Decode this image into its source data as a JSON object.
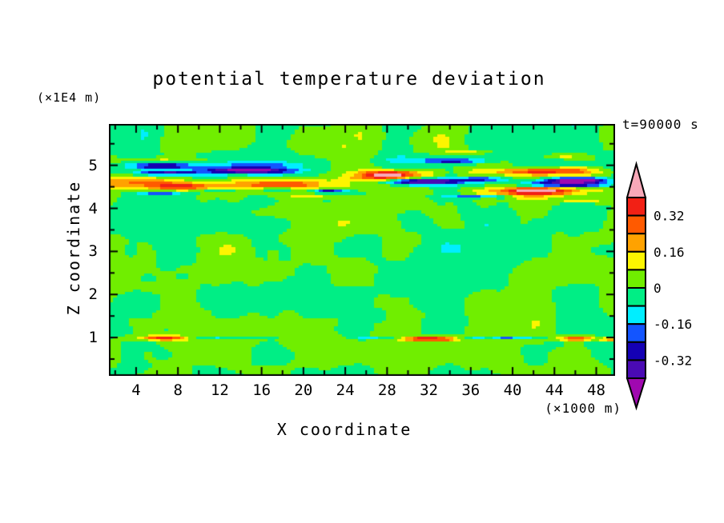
{
  "title": "potential temperature deviation",
  "annotations": {
    "y_units_label": "(×1E4 m)",
    "x_units_label": "(×1000 m)",
    "time_label": "t=90000 s"
  },
  "axes": {
    "x": {
      "label": "X coordinate",
      "major_ticks": [
        4,
        8,
        12,
        16,
        20,
        24,
        28,
        32,
        36,
        40,
        44,
        48
      ],
      "minor_step": 2
    },
    "z": {
      "label": "Z coordinate",
      "major_ticks": [
        1,
        2,
        3,
        4,
        5
      ],
      "minor_step": 0.5
    }
  },
  "colorbar": {
    "labels": [
      "0.32",
      "0.16",
      "0",
      "-0.16",
      "-0.32"
    ],
    "label_boundary_indices": [
      1,
      3,
      5,
      7,
      9
    ]
  },
  "chart_data": {
    "type": "heatmap",
    "title": "potential temperature deviation",
    "xlabel": "X coordinate (×1000 m)",
    "ylabel": "Z coordinate (×1E4 m)",
    "time": "t=90000 s",
    "x_range": [
      1.4,
      49.8
    ],
    "z_range": [
      0.11,
      5.96
    ],
    "contour_interval": 0.08,
    "levels": [
      -0.4,
      -0.32,
      -0.24,
      -0.16,
      -0.08,
      0,
      0.08,
      0.16,
      0.24,
      0.32,
      0.4
    ],
    "band_colors": [
      "#a008b0",
      "#4a0ab4",
      "#1400b4",
      "#1355ff",
      "#00eeff",
      "#00ee85",
      "#70ee00",
      "#fdf500",
      "#ffa200",
      "#ff5a00",
      "#f22015",
      "#f8a8b8"
    ],
    "grid": {
      "nx": 128,
      "nz": 96
    },
    "background_noise": {
      "amp1": 0.075,
      "sx1": 4.2,
      "sz1": 0.62,
      "seed1": 7,
      "amp2": 0.03,
      "sx2": 1.7,
      "sz2": 0.3,
      "seed2": 13
    },
    "features": [
      {
        "cx": 4.5,
        "cz": 4.6,
        "lx": 4.0,
        "lz": 0.14,
        "a": 0.27
      },
      {
        "cx": 8.5,
        "cz": 4.5,
        "lx": 3.2,
        "lz": 0.09,
        "a": 0.31
      },
      {
        "cx": 17.5,
        "cz": 4.55,
        "lx": 5.0,
        "lz": 0.14,
        "a": 0.33
      },
      {
        "cx": 27.5,
        "cz": 4.68,
        "lx": 3.2,
        "lz": 0.1,
        "a": 0.3
      },
      {
        "cx": 28.5,
        "cz": 4.8,
        "lx": 3.0,
        "lz": 0.08,
        "a": 0.38
      },
      {
        "cx": 43.0,
        "cz": 4.85,
        "lx": 4.6,
        "lz": 0.09,
        "a": 0.38
      },
      {
        "cx": 42.5,
        "cz": 4.4,
        "lx": 4.6,
        "lz": 0.1,
        "a": 0.42
      },
      {
        "cx": 6.0,
        "cz": 5.12,
        "lx": 5.0,
        "lz": 0.06,
        "a": 0.13
      },
      {
        "cx": 36.0,
        "cz": 5.3,
        "lx": 1.8,
        "lz": 0.04,
        "a": 0.13
      },
      {
        "cx": 44.5,
        "cz": 5.22,
        "lx": 1.8,
        "lz": 0.04,
        "a": 0.13
      },
      {
        "cx": 21.0,
        "cz": 4.3,
        "lx": 2.4,
        "lz": 0.06,
        "a": 0.15
      },
      {
        "cx": 46.5,
        "cz": 4.18,
        "lx": 2.6,
        "lz": 0.05,
        "a": 0.16
      },
      {
        "cx": 6.5,
        "cz": 4.97,
        "lx": 2.8,
        "lz": 0.06,
        "a": -0.28
      },
      {
        "cx": 14.7,
        "cz": 4.88,
        "lx": 4.0,
        "lz": 0.08,
        "a": -0.45
      },
      {
        "cx": 7.0,
        "cz": 4.82,
        "lx": 3.0,
        "lz": 0.05,
        "a": -0.3
      },
      {
        "cx": 31.0,
        "cz": 4.62,
        "lx": 4.6,
        "lz": 0.08,
        "a": -0.47
      },
      {
        "cx": 37.0,
        "cz": 4.68,
        "lx": 2.2,
        "lz": 0.06,
        "a": -0.28
      },
      {
        "cx": 34.5,
        "cz": 5.1,
        "lx": 2.4,
        "lz": 0.05,
        "a": -0.24
      },
      {
        "cx": 33.0,
        "cz": 5.12,
        "lx": 5.5,
        "lz": 0.1,
        "a": -0.12
      },
      {
        "cx": 46.2,
        "cz": 4.66,
        "lx": 2.6,
        "lz": 0.06,
        "a": -0.53
      },
      {
        "cx": 45.0,
        "cz": 4.56,
        "lx": 4.2,
        "lz": 0.07,
        "a": -0.4
      },
      {
        "cx": 17.5,
        "cz": 4.44,
        "lx": 2.0,
        "lz": 0.035,
        "a": -0.36
      },
      {
        "cx": 22.5,
        "cz": 4.42,
        "lx": 1.7,
        "lz": 0.035,
        "a": -0.3
      },
      {
        "cx": 6.5,
        "cz": 4.36,
        "lx": 2.0,
        "lz": 0.035,
        "a": -0.24
      },
      {
        "cx": 36.5,
        "cz": 4.27,
        "lx": 3.0,
        "lz": 0.035,
        "a": -0.26
      },
      {
        "cx": 6.5,
        "cz": 5.05,
        "lx": 3.2,
        "lz": 0.07,
        "a": -0.12
      },
      {
        "cx": 16.0,
        "cz": 5.02,
        "lx": 3.8,
        "lz": 0.06,
        "a": -0.12
      },
      {
        "cx": 22.5,
        "cz": 4.35,
        "lx": 2.8,
        "lz": 0.06,
        "a": -0.13
      },
      {
        "cx": 46.0,
        "cz": 5.05,
        "lx": 2.4,
        "lz": 0.05,
        "a": -0.12
      },
      {
        "cx": 12.0,
        "cz": 4.42,
        "lx": 2.2,
        "lz": 0.05,
        "a": -0.13
      },
      {
        "cx": 6.8,
        "cz": 0.99,
        "lx": 2.4,
        "lz": 0.06,
        "a": 0.38
      },
      {
        "cx": 11.5,
        "cz": 1.01,
        "lx": 4.5,
        "lz": 0.035,
        "a": -0.14
      },
      {
        "cx": 32.2,
        "cz": 0.97,
        "lx": 2.5,
        "lz": 0.065,
        "a": 0.47
      },
      {
        "cx": 39.5,
        "cz": 1.0,
        "lx": 5.0,
        "lz": 0.028,
        "a": -0.33,
        "mod": 1.3
      },
      {
        "cx": 46.0,
        "cz": 0.98,
        "lx": 1.9,
        "lz": 0.06,
        "a": 0.37
      },
      {
        "cx": 49.5,
        "cz": 0.95,
        "lx": 1.0,
        "lz": 0.05,
        "a": 0.3
      },
      {
        "cx": 27.0,
        "cz": 1.0,
        "lx": 2.2,
        "lz": 0.025,
        "a": -0.12
      }
    ]
  }
}
